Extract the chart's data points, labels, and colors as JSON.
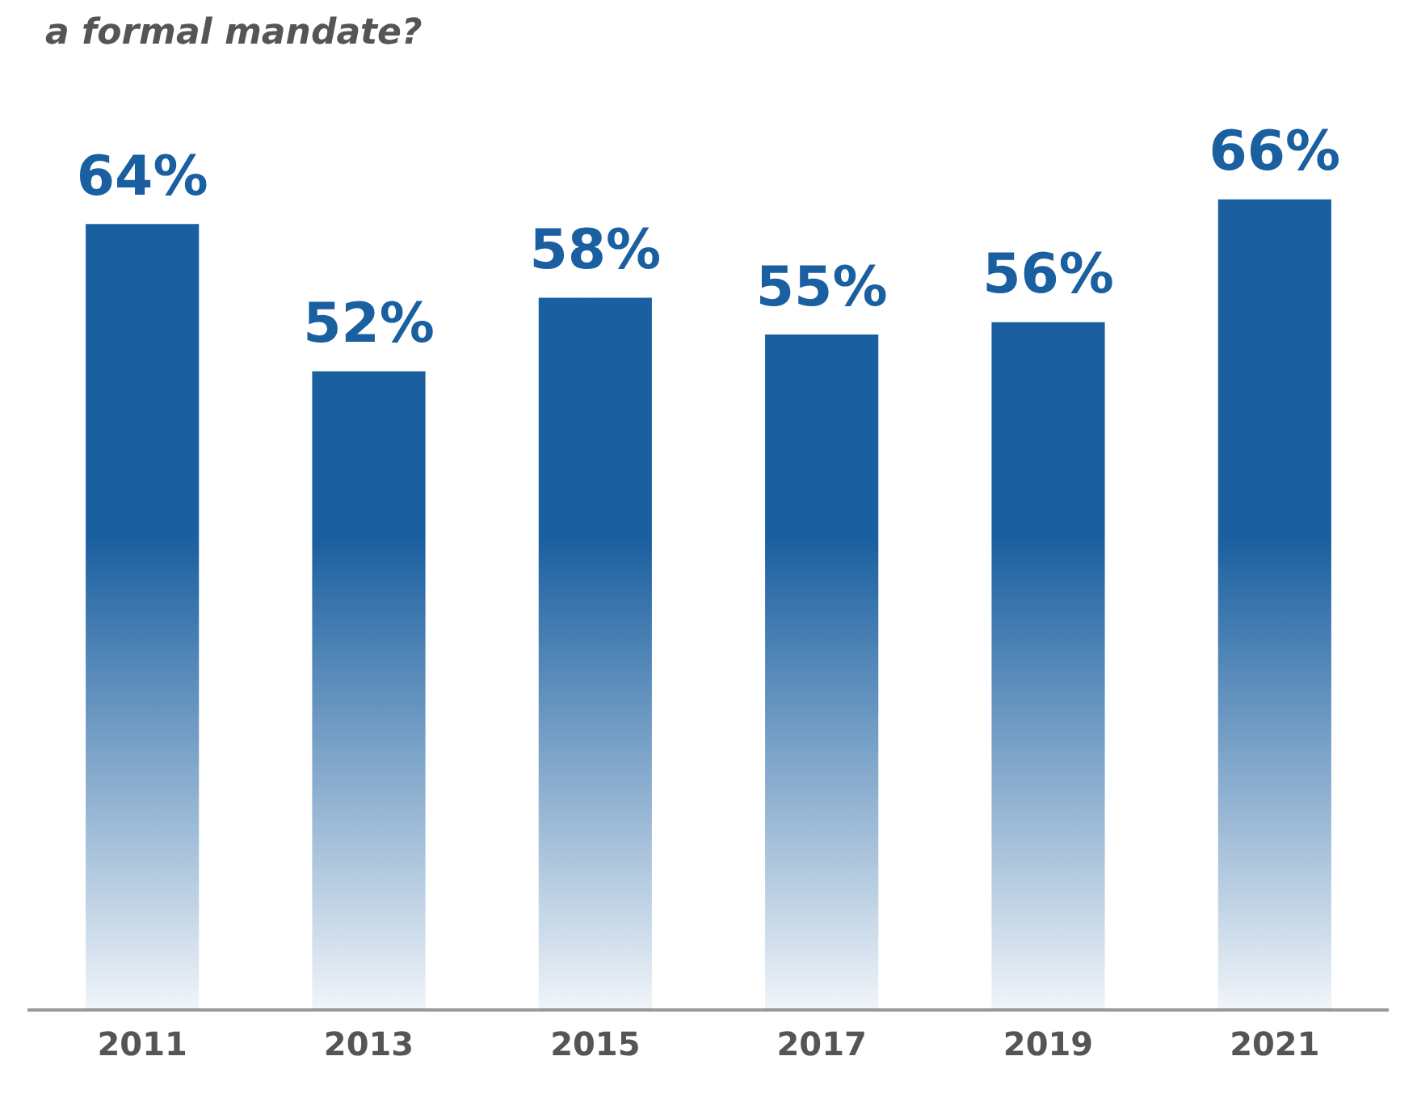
{
  "chart_data": {
    "type": "bar",
    "title": "a formal mandate?",
    "categories": [
      "2011",
      "2013",
      "2015",
      "2017",
      "2019",
      "2021"
    ],
    "values": [
      64,
      52,
      58,
      55,
      56,
      66
    ],
    "value_labels": [
      "64%",
      "52%",
      "58%",
      "55%",
      "56%",
      "66%"
    ],
    "color": "#1a5fa0",
    "tick_labels": "x",
    "grid": false,
    "legend": false
  }
}
